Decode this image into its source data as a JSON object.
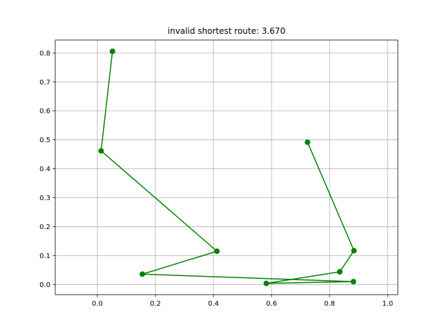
{
  "chart_data": {
    "type": "line",
    "title": "invalid shortest route: 3.670",
    "xlabel": "",
    "ylabel": "",
    "xlim": [
      -0.145,
      1.035
    ],
    "ylim": [
      -0.035,
      0.845
    ],
    "xticks": [
      0.0,
      0.2,
      0.4,
      0.6,
      0.8,
      1.0
    ],
    "xtick_labels": [
      "0.0",
      "0.2",
      "0.4",
      "0.6",
      "0.8",
      "1.0"
    ],
    "yticks": [
      0.0,
      0.1,
      0.2,
      0.3,
      0.4,
      0.5,
      0.6,
      0.7,
      0.8
    ],
    "ytick_labels": [
      "0.0",
      "0.1",
      "0.2",
      "0.3",
      "0.4",
      "0.5",
      "0.6",
      "0.7",
      "0.8"
    ],
    "grid": true,
    "legend": "none",
    "series": [
      {
        "color": "#008000",
        "marker": "circle",
        "x": [
          0.052,
          0.013,
          0.412,
          0.155,
          0.882,
          0.582,
          0.835,
          0.884,
          0.724
        ],
        "y": [
          0.806,
          0.462,
          0.115,
          0.036,
          0.01,
          0.004,
          0.044,
          0.117,
          0.492
        ]
      }
    ],
    "colors": {
      "axes": "#000000",
      "grid": "#b0b0b0",
      "background": "#ffffff"
    }
  }
}
